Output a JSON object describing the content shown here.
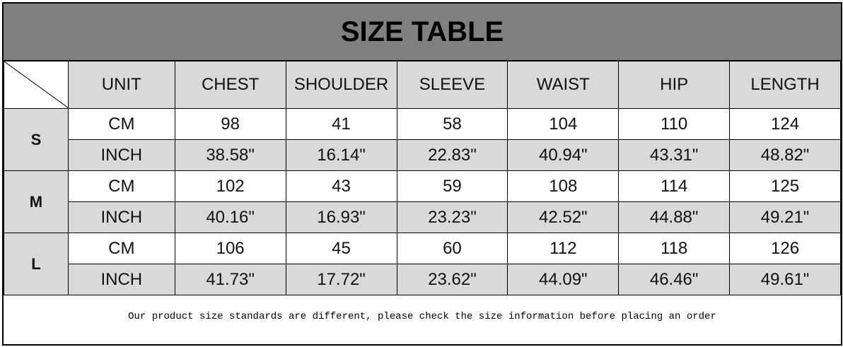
{
  "title": "SIZE TABLE",
  "headers": [
    "UNIT",
    "CHEST",
    "SHOULDER",
    "SLEEVE",
    "WAIST",
    "HIP",
    "LENGTH"
  ],
  "sizes": [
    {
      "size": "S",
      "cm": {
        "unit": "CM",
        "values": [
          "98",
          "41",
          "58",
          "104",
          "110",
          "124"
        ]
      },
      "inch": {
        "unit": "INCH",
        "values": [
          "38.58\"",
          "16.14\"",
          "22.83\"",
          "40.94\"",
          "43.31\"",
          "48.82\""
        ]
      }
    },
    {
      "size": "M",
      "cm": {
        "unit": "CM",
        "values": [
          "102",
          "43",
          "59",
          "108",
          "114",
          "125"
        ]
      },
      "inch": {
        "unit": "INCH",
        "values": [
          "40.16\"",
          "16.93\"",
          "23.23\"",
          "42.52\"",
          "44.88\"",
          "49.21\""
        ]
      }
    },
    {
      "size": "L",
      "cm": {
        "unit": "CM",
        "values": [
          "106",
          "45",
          "60",
          "112",
          "118",
          "126"
        ]
      },
      "inch": {
        "unit": "INCH",
        "values": [
          "41.73\"",
          "17.72\"",
          "23.62\"",
          "44.09\"",
          "46.46\"",
          "49.61\""
        ]
      }
    }
  ],
  "footer": "Our product size standards are different, please check the size information before placing an order",
  "colors": {
    "title_bg": "#808080",
    "header_bg": "#d9d9d9",
    "row_alt_bg": "#d9d9d9"
  }
}
